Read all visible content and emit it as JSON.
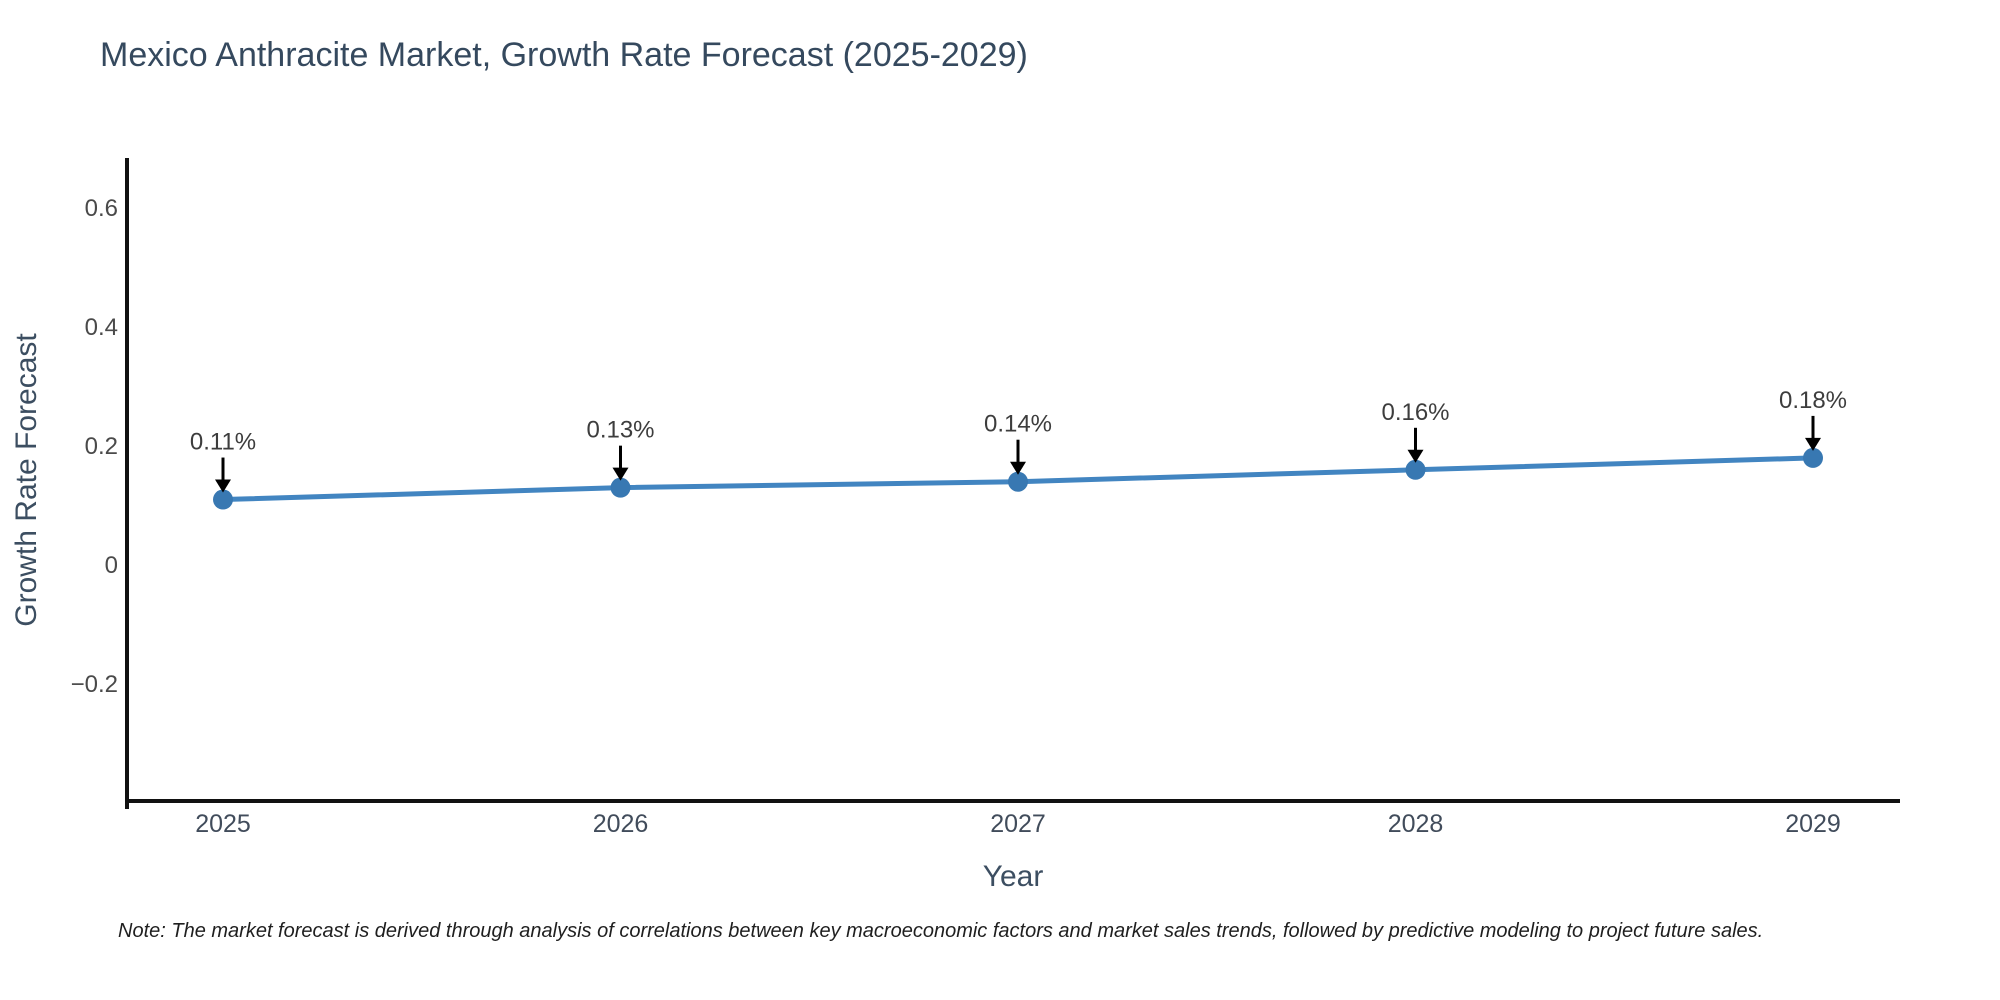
{
  "note": "Note: The market forecast is derived through analysis of correlations between key macroeconomic factors and market sales trends, followed by predictive modeling to project future sales.",
  "chart_data": {
    "type": "line",
    "title": "Mexico Anthracite Market, Growth Rate Forecast (2025-2029)",
    "xlabel": "Year",
    "ylabel": "Growth Rate Forecast",
    "categories": [
      "2025",
      "2026",
      "2027",
      "2028",
      "2029"
    ],
    "values": [
      0.11,
      0.13,
      0.14,
      0.16,
      0.18
    ],
    "point_labels": [
      "0.11%",
      "0.13%",
      "0.14%",
      "0.16%",
      "0.18%"
    ],
    "yticks": [
      -0.2,
      0,
      0.2,
      0.4,
      0.6
    ],
    "ytick_labels": [
      "−0.2",
      "0",
      "0.2",
      "0.4",
      "0.6"
    ],
    "ylim": [
      -0.4,
      0.68
    ],
    "grid": false,
    "legend": "none",
    "annotation_style": "down-arrow-to-point",
    "colors": {
      "line": "#4285c1",
      "marker": "#3878b2",
      "arrow": "#000000",
      "axis": "#111111",
      "title_text": "#35495e",
      "axis_title_text": "#3c4e61",
      "y_tick_text": "#4a4a4a",
      "x_tick_text": "#414c5b",
      "point_label_text": "#3d3d3d",
      "note_text": "#1f1f1f",
      "background": "#ffffff"
    }
  }
}
